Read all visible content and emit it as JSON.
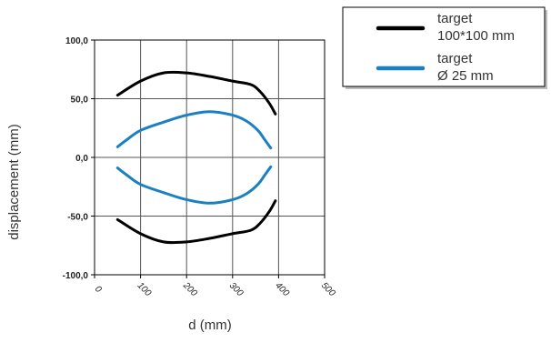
{
  "chart_data": {
    "type": "line",
    "title": "",
    "xlabel": "d (mm)",
    "ylabel": "displacement (mm)",
    "xlim": [
      0,
      500
    ],
    "ylim": [
      -100,
      100
    ],
    "x_ticks": [
      0,
      100,
      200,
      300,
      400,
      500
    ],
    "x_tick_labels": [
      "0",
      "100",
      "200",
      "300",
      "400",
      "500"
    ],
    "y_ticks": [
      -100,
      -50,
      0,
      50,
      100
    ],
    "y_tick_labels": [
      "-100,0",
      "-50,0",
      "0,0",
      "50,0",
      "100,0"
    ],
    "grid": true,
    "legend_position": "top-right",
    "series": [
      {
        "name": "target 100*100 mm",
        "legend_lines": [
          "target",
          "100*100 mm"
        ],
        "color": "#000000",
        "x": [
          50,
          100,
          150,
          200,
          250,
          300,
          340,
          360,
          380,
          393
        ],
        "y": [
          53,
          65,
          72,
          72,
          69,
          65,
          62,
          56,
          46,
          37
        ]
      },
      {
        "name": "target 100*100 mm (lower)",
        "legend_lines": [],
        "color": "#000000",
        "x": [
          50,
          100,
          150,
          200,
          250,
          300,
          340,
          360,
          380,
          393
        ],
        "y": [
          -53,
          -65,
          -72,
          -72,
          -69,
          -65,
          -62,
          -56,
          -46,
          -37
        ]
      },
      {
        "name": "target Ø 25 mm",
        "legend_lines": [
          "target",
          "Ø 25 mm"
        ],
        "color": "#1b7fc4",
        "x": [
          50,
          70,
          100,
          150,
          200,
          250,
          300,
          330,
          355,
          370,
          383
        ],
        "y": [
          9,
          15,
          23,
          30,
          36,
          39,
          36,
          31,
          23,
          15,
          8
        ]
      },
      {
        "name": "target Ø 25 mm (lower)",
        "legend_lines": [],
        "color": "#1b7fc4",
        "x": [
          50,
          70,
          100,
          150,
          200,
          250,
          300,
          330,
          355,
          370,
          383
        ],
        "y": [
          -9,
          -15,
          -23,
          -30,
          -36,
          -39,
          -36,
          -31,
          -23,
          -15,
          -8
        ]
      }
    ]
  }
}
